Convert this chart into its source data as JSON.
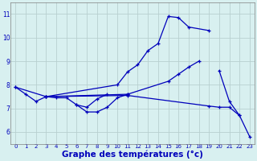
{
  "background_color": "#d8f0f0",
  "grid_color": "#b8d0d0",
  "line_color": "#0000bb",
  "xlabel": "Graphe des températures (°c)",
  "xlabel_fontsize": 7.5,
  "xlim": [
    -0.5,
    23.5
  ],
  "ylim": [
    5.5,
    11.5
  ],
  "yticks": [
    6,
    7,
    8,
    9,
    10,
    11
  ],
  "xticks": [
    0,
    1,
    2,
    3,
    4,
    5,
    6,
    7,
    8,
    9,
    10,
    11,
    12,
    13,
    14,
    15,
    16,
    17,
    18,
    19,
    20,
    21,
    22,
    23
  ],
  "curves": [
    {
      "x": [
        0,
        3,
        11,
        19,
        20,
        21,
        22,
        23
      ],
      "y": [
        7.9,
        7.5,
        7.55,
        7.1,
        7.05,
        7.05,
        6.7,
        5.8
      ]
    },
    {
      "x": [
        3,
        10,
        11,
        12,
        13,
        14,
        15,
        16,
        17,
        19
      ],
      "y": [
        7.5,
        8.0,
        8.55,
        8.85,
        9.45,
        9.75,
        10.9,
        10.85,
        10.45,
        10.3
      ]
    },
    {
      "x": [
        3,
        11,
        15,
        16,
        17,
        18,
        19,
        20,
        21,
        22,
        23
      ],
      "y": [
        7.5,
        7.6,
        8.15,
        8.45,
        8.75,
        9.0,
        null,
        8.6,
        7.3,
        6.7,
        null
      ]
    },
    {
      "x": [
        0,
        1,
        2,
        3,
        4,
        5,
        6,
        7,
        8,
        9,
        10,
        11
      ],
      "y": [
        7.9,
        7.6,
        7.3,
        7.5,
        7.45,
        7.45,
        7.15,
        6.85,
        6.85,
        7.05,
        7.45,
        7.6
      ]
    },
    {
      "x": [
        6,
        7,
        8,
        9,
        10,
        11
      ],
      "y": [
        7.15,
        7.05,
        7.4,
        7.6,
        null,
        null
      ]
    }
  ]
}
